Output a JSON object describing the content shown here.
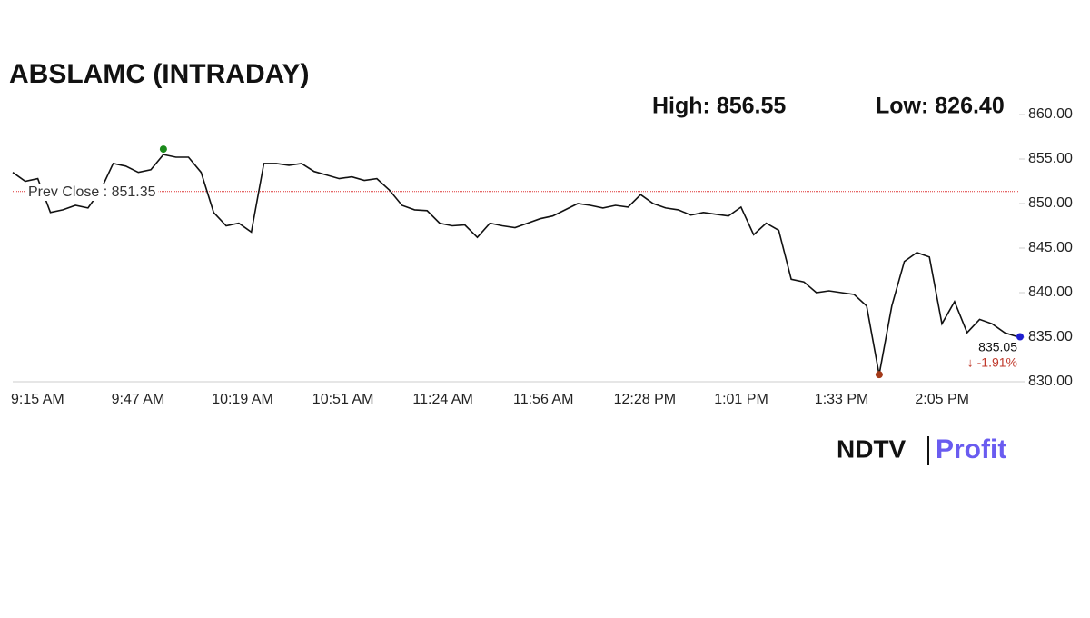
{
  "chart_data": {
    "type": "line",
    "title": "ABSLAMC (INTRADAY)",
    "high": {
      "value": 856.55,
      "label": "High: 856.55"
    },
    "low": {
      "value": 826.4,
      "label": "Low: 826.40"
    },
    "prev_close": {
      "value": 851.35,
      "label": "Prev Close : 851.35"
    },
    "change_label": "↓ -1.91%",
    "logo": [
      "NDTV",
      "Profit"
    ],
    "color": "#111111",
    "categories": [
      "9:15 AM",
      null,
      null,
      null,
      null,
      null,
      null,
      null,
      "9:47 AM",
      null,
      null,
      null,
      null,
      null,
      null,
      null,
      "10:19 AM",
      null,
      null,
      null,
      null,
      null,
      null,
      null,
      "10:51 AM",
      null,
      null,
      null,
      null,
      null,
      null,
      null,
      "11:24 AM",
      null,
      null,
      null,
      null,
      null,
      null,
      null,
      "11:56 AM",
      null,
      null,
      null,
      null,
      null,
      null,
      null,
      "12:28 PM",
      null,
      null,
      null,
      null,
      null,
      null,
      null,
      "1:01 PM",
      null,
      null,
      null,
      null,
      null,
      null,
      null,
      "1:33 PM",
      null,
      null,
      null,
      null,
      null,
      null,
      null,
      "2:05 PM",
      null,
      null,
      null,
      null,
      null,
      null,
      null,
      null
    ],
    "values": [
      853.5,
      852.5,
      852.8,
      849,
      849.3,
      849.8,
      849.5,
      851.5,
      854.5,
      854.2,
      853.5,
      853.8,
      855.5,
      855.2,
      855.2,
      853.5,
      849,
      847.5,
      847.8,
      846.8,
      854.5,
      854.5,
      854.3,
      854.5,
      853.6,
      853.2,
      852.8,
      853,
      852.6,
      852.8,
      851.5,
      849.8,
      849.3,
      849.2,
      847.8,
      847.5,
      847.6,
      846.2,
      847.8,
      847.5,
      847.3,
      847.8,
      848.3,
      848.6,
      849.3,
      850,
      849.8,
      849.5,
      849.8,
      849.6,
      851,
      850,
      849.5,
      849.3,
      848.7,
      849,
      848.8,
      848.6,
      849.6,
      846.5,
      847.8,
      847,
      841.5,
      841.2,
      840,
      840.2,
      840,
      839.8,
      838.5,
      830.8,
      838.5,
      843.5,
      844.5,
      844,
      836.5,
      839,
      835.5,
      837,
      836.5,
      835.5,
      835.05
    ],
    "ylim": [
      830,
      860
    ],
    "yticks": [
      {
        "value": 830,
        "label": "830.00"
      },
      {
        "value": 835,
        "label": "835.00"
      },
      {
        "value": 840,
        "label": "840.00"
      },
      {
        "value": 845,
        "label": "845.00"
      },
      {
        "value": 850,
        "label": "850.00"
      },
      {
        "value": 855,
        "label": "855.00"
      },
      {
        "value": 860,
        "label": "860.00"
      }
    ]
  }
}
